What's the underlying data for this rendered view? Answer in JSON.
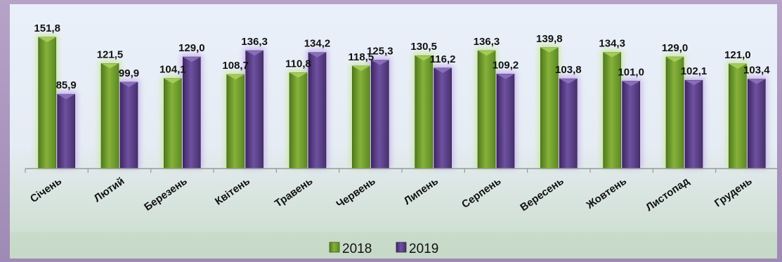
{
  "chart_data": {
    "type": "bar",
    "categories": [
      "Січень",
      "Лютий",
      "Березень",
      "Квітень",
      "Травень",
      "Червень",
      "Липень",
      "Серпень",
      "Вересень",
      "Жовтень",
      "Листопад",
      "Грудень"
    ],
    "series": [
      {
        "name": "2018",
        "values": [
          151.8,
          121.5,
          104.1,
          108.7,
          110.8,
          118.5,
          130.5,
          136.3,
          139.8,
          134.3,
          129.0,
          121.0
        ],
        "labels": [
          "151,8",
          "121,5",
          "104,1",
          "108,7",
          "110,8",
          "118,5",
          "130,5",
          "136,3",
          "139,8",
          "134,3",
          "129,0",
          "121,0"
        ],
        "color": "#6f9a2c"
      },
      {
        "name": "2019",
        "values": [
          85.9,
          99.9,
          129.0,
          136.3,
          134.2,
          125.3,
          116.2,
          109.2,
          103.8,
          101.0,
          102.1,
          103.4
        ],
        "labels": [
          "85,9",
          "99,9",
          "129,0",
          "136,3",
          "134,2",
          "125,3",
          "116,2",
          "109,2",
          "103,8",
          "101,0",
          "102,1",
          "103,4"
        ],
        "color": "#5c3f86"
      }
    ],
    "title": "",
    "xlabel": "",
    "ylabel": "",
    "ylim": [
      0,
      160
    ],
    "grid": false,
    "legend_position": "bottom",
    "number_format": "comma-decimal"
  }
}
